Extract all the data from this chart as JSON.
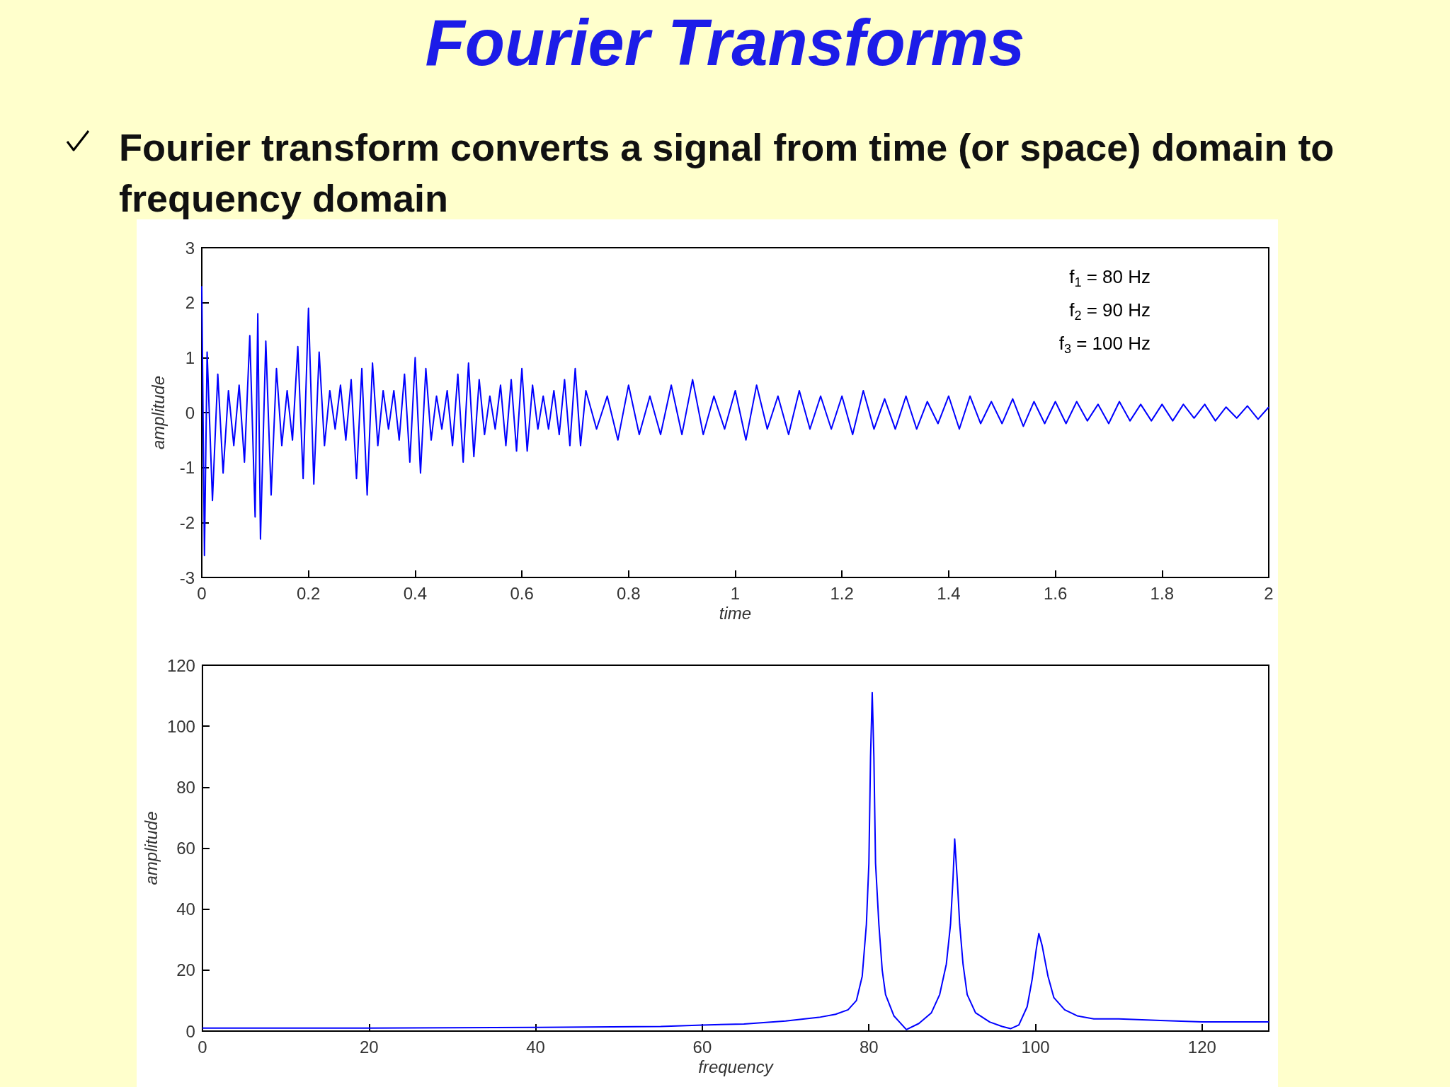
{
  "chart_data": [
    {
      "type": "line",
      "title": "Fourier Transforms",
      "subtitle": "Fourier transform converts a signal from time (or space) domain to frequency domain",
      "xlabel": "time",
      "ylabel": "amplitude",
      "annotations": [
        "f$_{1}$ = 80 Hz",
        "f$_{2}$ = 90 Hz",
        "f$_{3}$ = 100 Hz"
      ],
      "xlim": [
        0,
        2
      ],
      "xticks": [
        0,
        0.2,
        0.4,
        0.6,
        0.8,
        1,
        1.2,
        1.4,
        1.6,
        1.8,
        2
      ],
      "ylim": [
        -3,
        3
      ],
      "yticks": [
        -3,
        -2,
        -1,
        0,
        1,
        2,
        3
      ],
      "series": [
        {
          "color": "#0000ff",
          "x": [
            0,
            0.005,
            0.01,
            0.02,
            0.03,
            0.04,
            0.05,
            0.06,
            0.07,
            0.08,
            0.09,
            0.1,
            0.105,
            0.11,
            0.12,
            0.13,
            0.14,
            0.15,
            0.16,
            0.17,
            0.18,
            0.19,
            0.2,
            0.21,
            0.22,
            0.23,
            0.24,
            0.25,
            0.26,
            0.27,
            0.28,
            0.29,
            0.3,
            0.31,
            0.32,
            0.33,
            0.34,
            0.35,
            0.36,
            0.37,
            0.38,
            0.39,
            0.4,
            0.41,
            0.42,
            0.43,
            0.44,
            0.45,
            0.46,
            0.47,
            0.48,
            0.49,
            0.5,
            0.51,
            0.52,
            0.53,
            0.54,
            0.55,
            0.56,
            0.57,
            0.58,
            0.59,
            0.6,
            0.61,
            0.62,
            0.63,
            0.64,
            0.65,
            0.66,
            0.67,
            0.68,
            0.69,
            0.7,
            0.71,
            0.72,
            0.74,
            0.76,
            0.78,
            0.8,
            0.82,
            0.84,
            0.86,
            0.88,
            0.9,
            0.92,
            0.94,
            0.96,
            0.98,
            1,
            1.02,
            1.04,
            1.06,
            1.08,
            1.1,
            1.12,
            1.14,
            1.16,
            1.18,
            1.2,
            1.22,
            1.24,
            1.26,
            1.28,
            1.3,
            1.32,
            1.34,
            1.36,
            1.38,
            1.4,
            1.42,
            1.44,
            1.46,
            1.48,
            1.5,
            1.52,
            1.54,
            1.56,
            1.58,
            1.6,
            1.62,
            1.64,
            1.66,
            1.68,
            1.7,
            1.72,
            1.74,
            1.76,
            1.78,
            1.8,
            1.82,
            1.84,
            1.86,
            1.88,
            1.9,
            1.92,
            1.94,
            1.96,
            1.98,
            2
          ],
          "values": [
            2.3,
            -2.6,
            1.1,
            -1.6,
            0.7,
            -1.1,
            0.4,
            -0.6,
            0.5,
            -0.9,
            1.4,
            -1.9,
            1.8,
            -2.3,
            1.3,
            -1.5,
            0.8,
            -0.6,
            0.4,
            -0.5,
            1.2,
            -1.2,
            1.9,
            -1.3,
            1.1,
            -0.6,
            0.4,
            -0.3,
            0.5,
            -0.5,
            0.6,
            -1.2,
            0.8,
            -1.5,
            0.9,
            -0.6,
            0.4,
            -0.3,
            0.4,
            -0.5,
            0.7,
            -0.9,
            1.0,
            -1.1,
            0.8,
            -0.5,
            0.3,
            -0.3,
            0.4,
            -0.6,
            0.7,
            -0.9,
            0.9,
            -0.8,
            0.6,
            -0.4,
            0.3,
            -0.3,
            0.5,
            -0.6,
            0.6,
            -0.7,
            0.8,
            -0.7,
            0.5,
            -0.3,
            0.3,
            -0.3,
            0.4,
            -0.4,
            0.6,
            -0.6,
            0.8,
            -0.6,
            0.4,
            -0.3,
            0.3,
            -0.5,
            0.5,
            -0.4,
            0.3,
            -0.4,
            0.5,
            -0.4,
            0.6,
            -0.4,
            0.3,
            -0.3,
            0.4,
            -0.5,
            0.5,
            -0.3,
            0.3,
            -0.4,
            0.4,
            -0.3,
            0.3,
            -0.3,
            0.3,
            -0.4,
            0.4,
            -0.3,
            0.25,
            -0.3,
            0.3,
            -0.3,
            0.2,
            -0.2,
            0.3,
            -0.3,
            0.3,
            -0.2,
            0.2,
            -0.2,
            0.25,
            -0.25,
            0.2,
            -0.2,
            0.2,
            -0.2,
            0.2,
            -0.15,
            0.15,
            -0.2,
            0.2,
            -0.15,
            0.15,
            -0.15,
            0.15,
            -0.15,
            0.15,
            -0.1,
            0.15,
            -0.15,
            0.1,
            -0.1,
            0.12,
            -0.12,
            0.1
          ]
        }
      ]
    },
    {
      "type": "line",
      "xlabel": "frequency",
      "ylabel": "amplitude",
      "xlim": [
        0,
        128
      ],
      "xticks": [
        0,
        20,
        40,
        60,
        80,
        100,
        120
      ],
      "ylim": [
        0,
        120
      ],
      "yticks": [
        0,
        20,
        40,
        60,
        80,
        100,
        120
      ],
      "series": [
        {
          "color": "#0000ff",
          "x": [
            0,
            20,
            40,
            55,
            60,
            65,
            70,
            74,
            76,
            77.5,
            78.5,
            79.2,
            79.7,
            80,
            80.2,
            80.4,
            80.6,
            80.8,
            81.2,
            81.6,
            82,
            83,
            84.5,
            86,
            87.5,
            88.5,
            89.3,
            89.8,
            90.1,
            90.3,
            90.6,
            90.9,
            91.3,
            91.8,
            92.8,
            94.5,
            96,
            97,
            98,
            99,
            99.6,
            100.1,
            100.4,
            100.8,
            101.5,
            102.2,
            103.5,
            105,
            107,
            110,
            115,
            120,
            128
          ],
          "values": [
            1,
            1,
            1.2,
            1.5,
            2,
            2.3,
            3.3,
            4.5,
            5.5,
            7,
            10,
            18,
            35,
            55,
            90,
            111,
            90,
            55,
            35,
            20,
            12,
            5,
            0.5,
            2.5,
            6,
            12,
            22,
            35,
            50,
            63,
            50,
            35,
            22,
            12,
            6,
            3,
            1.5,
            0.8,
            2,
            8,
            17,
            27,
            32,
            28,
            18,
            11,
            7,
            5,
            4,
            4,
            3.5,
            3,
            3
          ]
        }
      ]
    }
  ]
}
